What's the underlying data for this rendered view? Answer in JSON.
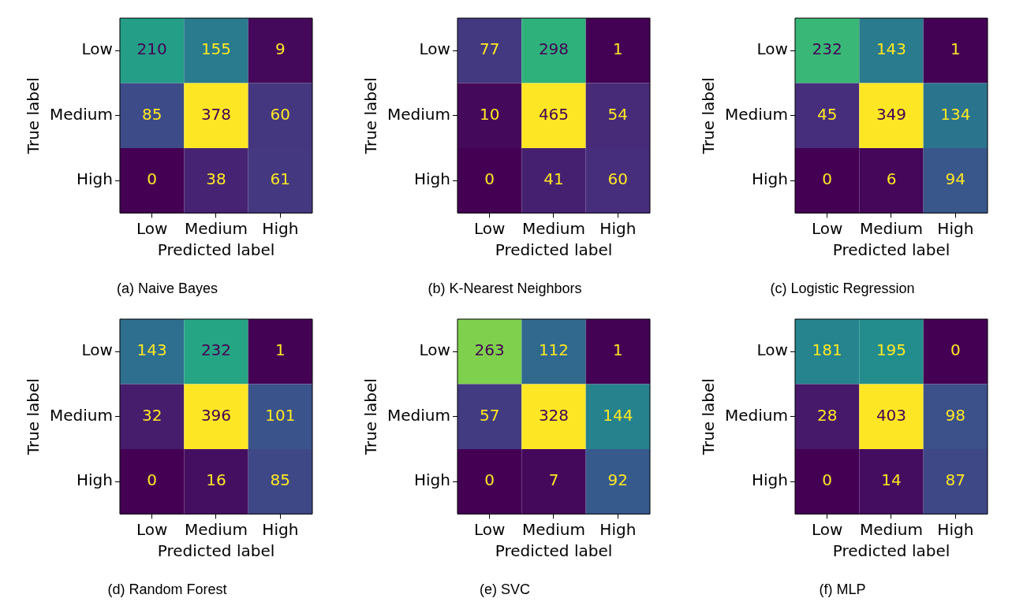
{
  "chart_data": [
    {
      "type": "heatmap",
      "title": "(a) Naive Bayes",
      "xlabel": "Predicted label",
      "ylabel": "True label",
      "categories": [
        "Low",
        "Medium",
        "High"
      ],
      "y_categories": [
        "Low",
        "Medium",
        "High"
      ],
      "data_labels": true,
      "cells": [
        [
          210,
          155,
          9
        ],
        [
          85,
          378,
          60
        ],
        [
          0,
          38,
          61
        ]
      ]
    },
    {
      "type": "heatmap",
      "title": "(b) K-Nearest Neighbors",
      "xlabel": "Predicted label",
      "ylabel": "True label",
      "categories": [
        "Low",
        "Medium",
        "High"
      ],
      "y_categories": [
        "Low",
        "Medium",
        "High"
      ],
      "data_labels": true,
      "cells": [
        [
          77,
          298,
          1
        ],
        [
          10,
          465,
          54
        ],
        [
          0,
          41,
          60
        ]
      ]
    },
    {
      "type": "heatmap",
      "title": "(c) Logistic Regression",
      "xlabel": "Predicted label",
      "ylabel": "True label",
      "categories": [
        "Low",
        "Medium",
        "High"
      ],
      "y_categories": [
        "Low",
        "Medium",
        "High"
      ],
      "data_labels": true,
      "cells": [
        [
          232,
          143,
          1
        ],
        [
          45,
          349,
          134
        ],
        [
          0,
          6,
          94
        ]
      ]
    },
    {
      "type": "heatmap",
      "title": "(d) Random Forest",
      "xlabel": "Predicted label",
      "ylabel": "True label",
      "categories": [
        "Low",
        "Medium",
        "High"
      ],
      "y_categories": [
        "Low",
        "Medium",
        "High"
      ],
      "data_labels": true,
      "cells": [
        [
          143,
          232,
          1
        ],
        [
          32,
          396,
          101
        ],
        [
          0,
          16,
          85
        ]
      ]
    },
    {
      "type": "heatmap",
      "title": "(e) SVC",
      "xlabel": "Predicted label",
      "ylabel": "True label",
      "categories": [
        "Low",
        "Medium",
        "High"
      ],
      "y_categories": [
        "Low",
        "Medium",
        "High"
      ],
      "data_labels": true,
      "cells": [
        [
          263,
          112,
          1
        ],
        [
          57,
          328,
          144
        ],
        [
          0,
          7,
          92
        ]
      ]
    },
    {
      "type": "heatmap",
      "title": "(f) MLP",
      "xlabel": "Predicted label",
      "ylabel": "True label",
      "categories": [
        "Low",
        "Medium",
        "High"
      ],
      "y_categories": [
        "Low",
        "Medium",
        "High"
      ],
      "data_labels": true,
      "cells": [
        [
          181,
          195,
          0
        ],
        [
          28,
          403,
          98
        ],
        [
          0,
          14,
          87
        ]
      ]
    }
  ]
}
